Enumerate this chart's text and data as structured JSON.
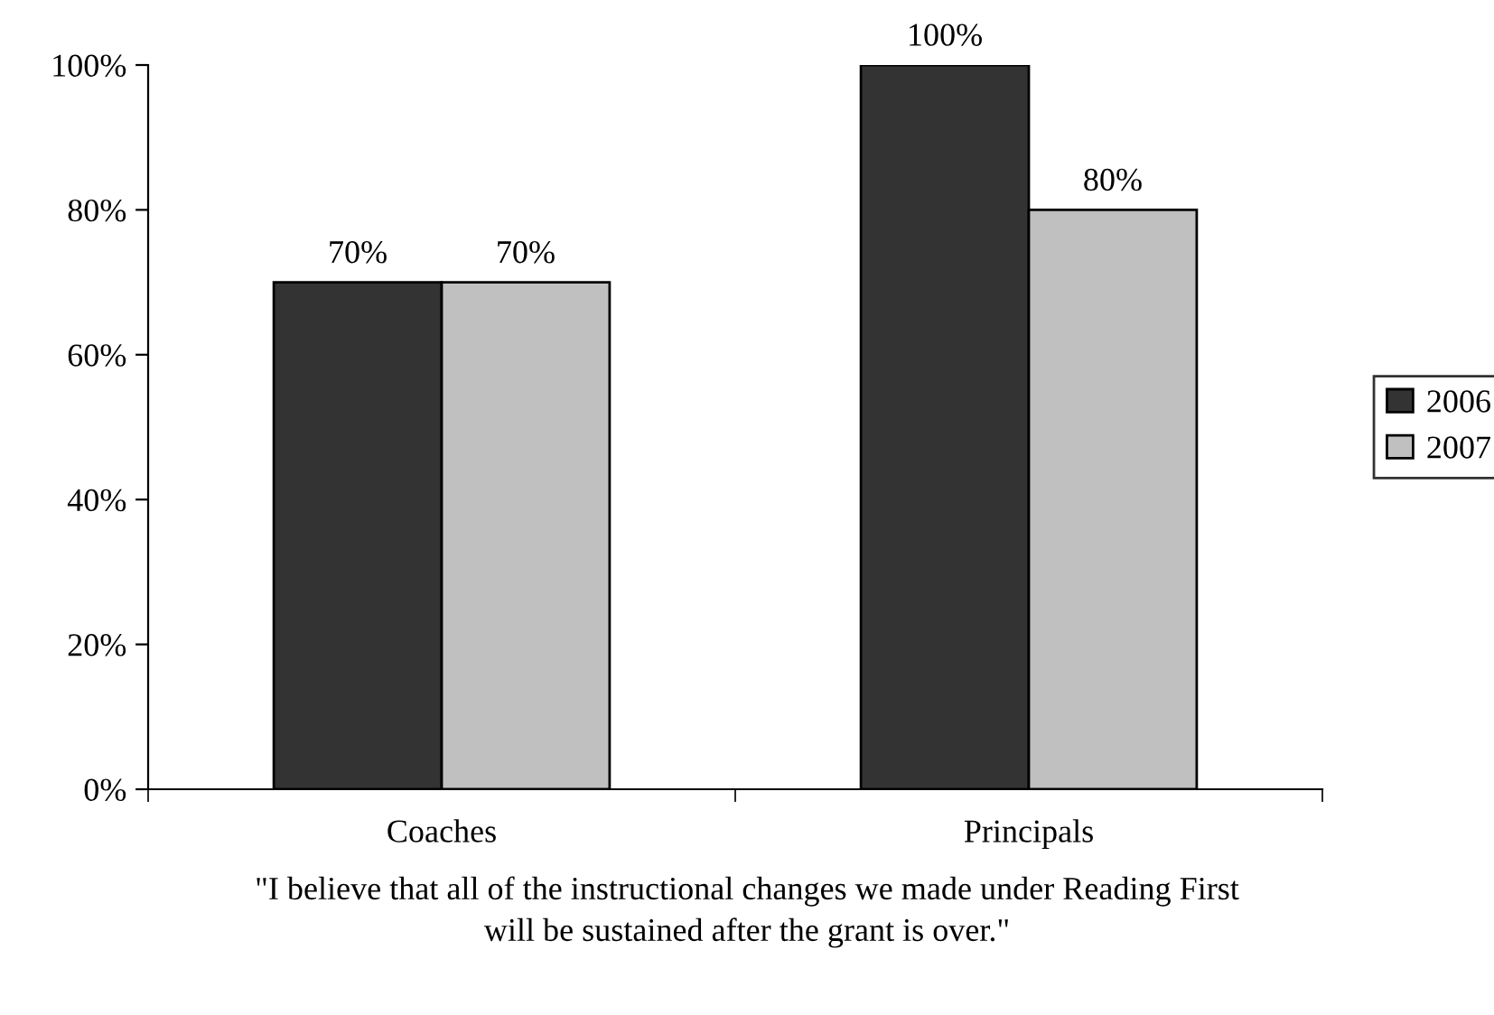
{
  "chart_data": {
    "type": "bar",
    "categories": [
      "Coaches",
      "Principals"
    ],
    "series": [
      {
        "name": "2006",
        "color": "#333333",
        "values": [
          70,
          100
        ],
        "value_labels": [
          "70%",
          "100%"
        ]
      },
      {
        "name": "2007",
        "color": "#c0c0c0",
        "values": [
          70,
          80
        ],
        "value_labels": [
          "70%",
          "80%"
        ]
      }
    ],
    "ylim": [
      0,
      100
    ],
    "yticks": [
      {
        "value": 0,
        "label": "0%"
      },
      {
        "value": 20,
        "label": "20%"
      },
      {
        "value": 40,
        "label": "40%"
      },
      {
        "value": 60,
        "label": "60%"
      },
      {
        "value": 80,
        "label": "80%"
      },
      {
        "value": 100,
        "label": "100%"
      }
    ],
    "legend": "right",
    "annotations": [
      "\"I believe that all of the instructional changes we made under Reading First\nwill be sustained after the grant is over.\""
    ]
  }
}
